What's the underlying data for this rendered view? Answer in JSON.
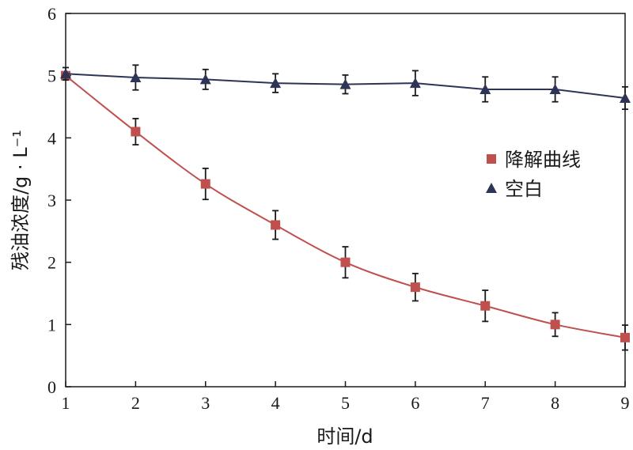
{
  "chart_data": {
    "type": "line",
    "title": "",
    "xlabel": "时间/d",
    "ylabel": "残油浓度/g · L⁻¹",
    "xlim": [
      1,
      9
    ],
    "ylim": [
      0,
      6
    ],
    "xticks": [
      "1",
      "2",
      "3",
      "4",
      "5",
      "6",
      "7",
      "8",
      "9"
    ],
    "yticks": [
      "0",
      "1",
      "2",
      "3",
      "4",
      "5",
      "6"
    ],
    "x": [
      1,
      2,
      3,
      4,
      5,
      6,
      7,
      8,
      9
    ],
    "grid": false,
    "legend_position": "right-middle",
    "series": [
      {
        "name": "降解曲线",
        "color": "#c0504d",
        "marker": "square",
        "smooth": true,
        "values": [
          5.0,
          4.1,
          3.26,
          2.6,
          2.0,
          1.6,
          1.3,
          1.0,
          0.79
        ],
        "errors": [
          0.05,
          0.21,
          0.25,
          0.23,
          0.25,
          0.22,
          0.25,
          0.19,
          0.2
        ]
      },
      {
        "name": "空白",
        "color": "#2e3456",
        "marker": "triangle",
        "smooth": false,
        "values": [
          5.03,
          4.97,
          4.94,
          4.88,
          4.86,
          4.88,
          4.78,
          4.78,
          4.64
        ],
        "errors": [
          0.1,
          0.2,
          0.16,
          0.15,
          0.15,
          0.2,
          0.2,
          0.2,
          0.18
        ]
      }
    ]
  }
}
